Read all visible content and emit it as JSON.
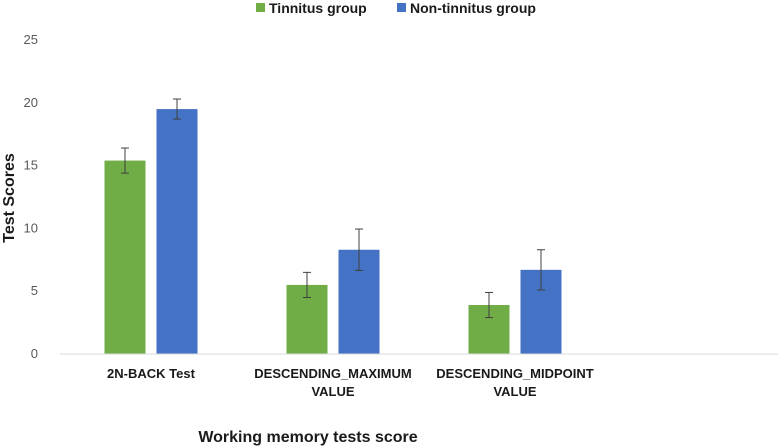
{
  "chart_data": {
    "type": "bar",
    "title": "",
    "xlabel": "Working memory tests score",
    "ylabel": "Test Scores",
    "ylim": [
      0,
      25
    ],
    "yticks": [
      0,
      5,
      10,
      15,
      20,
      25
    ],
    "grid": false,
    "legend_position": "top-center",
    "categories": [
      [
        "2N-BACK Test"
      ],
      [
        "DESCENDING_MAXIMUM",
        "VALUE"
      ],
      [
        "DESCENDING_MIDPOINT",
        "VALUE"
      ]
    ],
    "series": [
      {
        "name": "Tinnitus group",
        "color": "#70ad47",
        "values": [
          15.4,
          5.5,
          3.9
        ],
        "errors": [
          1.0,
          1.0,
          1.0
        ]
      },
      {
        "name": "Non-tinnitus group",
        "color": "#4472c4",
        "values": [
          19.5,
          8.3,
          6.7
        ],
        "errors": [
          0.8,
          1.65,
          1.6
        ]
      }
    ]
  }
}
